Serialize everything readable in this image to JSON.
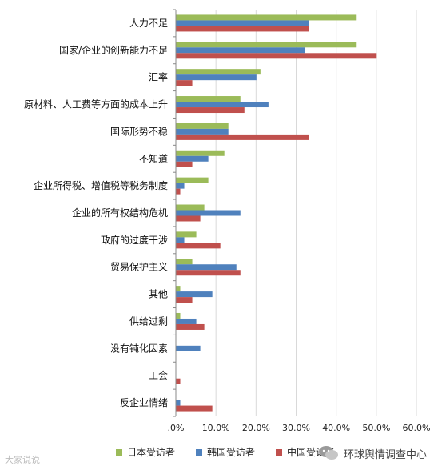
{
  "chart_data": {
    "type": "bar",
    "orientation": "horizontal",
    "categories": [
      "人力不足",
      "国家/企业的创新能力不足",
      "汇率",
      "原材料、人工费等方面的成本上升",
      "国际形势不稳",
      "不知道",
      "企业所得税、增值税等税务制度",
      "企业的所有权结构危机",
      "政府的过度干涉",
      "贸易保护主义",
      "其他",
      "供给过剩",
      "没有钝化因素",
      "工会",
      "反企业情绪"
    ],
    "series": [
      {
        "name": "日本受访者",
        "color": "#9bbb59",
        "values": [
          45,
          45,
          21,
          16,
          13,
          12,
          8,
          7,
          5,
          4,
          1,
          1,
          0,
          0,
          0
        ]
      },
      {
        "name": "韩国受访者",
        "color": "#4f81bd",
        "values": [
          33,
          32,
          20,
          23,
          13,
          8,
          2,
          16,
          2,
          15,
          9,
          5,
          6,
          0,
          1
        ]
      },
      {
        "name": "中国受访者",
        "color": "#c0504d",
        "values": [
          33,
          50,
          4,
          17,
          33,
          4,
          1,
          6,
          11,
          16,
          4,
          7,
          0,
          1,
          9
        ]
      }
    ],
    "xlim": [
      0,
      60
    ],
    "tick_labels": [
      ".0%",
      "10.0%",
      "20.0%",
      "30.0%",
      "40.0%",
      "50.0%",
      "60.0%"
    ],
    "grid": true,
    "legend_position": "bottom"
  },
  "watermark_left": "大家说说",
  "watermark_right": "环球舆情调查中心"
}
